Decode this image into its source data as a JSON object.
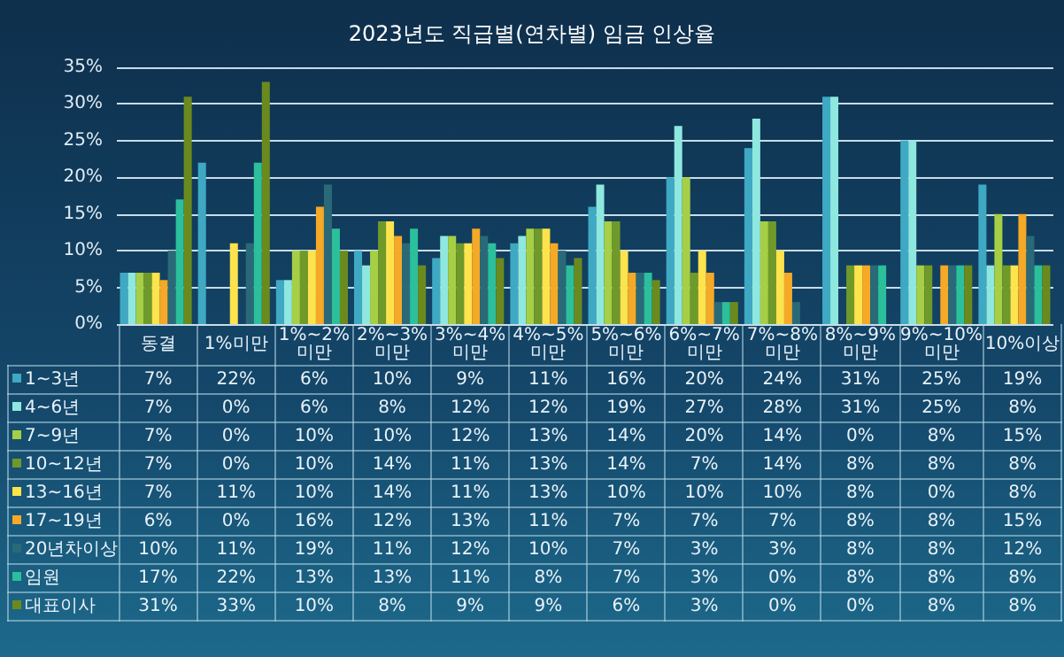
{
  "chart_data": {
    "type": "bar",
    "title": "2023년도 직급별(연차별) 임금 인상율",
    "categories": [
      "동결",
      "1%미만",
      "1%~2%\n미만",
      "2%~3%\n미만",
      "3%~4%\n미만",
      "4%~5%\n미만",
      "5%~6%\n미만",
      "6%~7%\n미만",
      "7%~8%\n미만",
      "8%~9%\n미만",
      "9%~10%\n미만",
      "10%이상"
    ],
    "ylim": [
      0,
      35
    ],
    "yticks": [
      {
        "value": 0,
        "label": "0%"
      },
      {
        "value": 5,
        "label": "5%"
      },
      {
        "value": 10,
        "label": "10%"
      },
      {
        "value": 15,
        "label": "15%"
      },
      {
        "value": 20,
        "label": "20%"
      },
      {
        "value": 25,
        "label": "25%"
      },
      {
        "value": 30,
        "label": "30%"
      },
      {
        "value": 35,
        "label": "35%"
      }
    ],
    "grid": "y",
    "legend": "bottom",
    "series": [
      {
        "name": "1~3년",
        "color": "#3fa9c4",
        "values": [
          7,
          22,
          6,
          10,
          9,
          11,
          16,
          20,
          24,
          31,
          25,
          19
        ],
        "value_labels": [
          "7%",
          "22%",
          "6%",
          "10%",
          "9%",
          "11%",
          "16%",
          "20%",
          "24%",
          "31%",
          "25%",
          "19%"
        ]
      },
      {
        "name": "4~6년",
        "color": "#8ee8e0",
        "values": [
          7,
          0,
          6,
          8,
          12,
          12,
          19,
          27,
          28,
          31,
          25,
          8
        ],
        "value_labels": [
          "7%",
          "0%",
          "6%",
          "8%",
          "12%",
          "12%",
          "19%",
          "27%",
          "28%",
          "31%",
          "25%",
          "8%"
        ]
      },
      {
        "name": "7~9년",
        "color": "#a6cf45",
        "values": [
          7,
          0,
          10,
          10,
          12,
          13,
          14,
          20,
          14,
          0,
          8,
          15
        ],
        "value_labels": [
          "7%",
          "0%",
          "10%",
          "10%",
          "12%",
          "13%",
          "14%",
          "20%",
          "14%",
          "0%",
          "8%",
          "15%"
        ]
      },
      {
        "name": "10~12년",
        "color": "#6f9a2a",
        "values": [
          7,
          0,
          10,
          14,
          11,
          13,
          14,
          7,
          14,
          8,
          8,
          8
        ],
        "value_labels": [
          "7%",
          "0%",
          "10%",
          "14%",
          "11%",
          "13%",
          "14%",
          "7%",
          "14%",
          "8%",
          "8%",
          "8%"
        ]
      },
      {
        "name": "13~16년",
        "color": "#fde34c",
        "values": [
          7,
          11,
          10,
          14,
          11,
          13,
          10,
          10,
          10,
          8,
          0,
          8
        ],
        "value_labels": [
          "7%",
          "11%",
          "10%",
          "14%",
          "11%",
          "13%",
          "10%",
          "10%",
          "10%",
          "8%",
          "0%",
          "8%"
        ]
      },
      {
        "name": "17~19년",
        "color": "#f5a927",
        "values": [
          6,
          0,
          16,
          12,
          13,
          11,
          7,
          7,
          7,
          8,
          8,
          15
        ],
        "value_labels": [
          "6%",
          "0%",
          "16%",
          "12%",
          "13%",
          "11%",
          "7%",
          "7%",
          "7%",
          "8%",
          "8%",
          "15%"
        ]
      },
      {
        "name": "20년차이상",
        "color": "#2a6a78",
        "values": [
          10,
          11,
          19,
          11,
          12,
          10,
          7,
          3,
          3,
          8,
          8,
          12
        ],
        "value_labels": [
          "10%",
          "11%",
          "19%",
          "11%",
          "12%",
          "10%",
          "7%",
          "3%",
          "3%",
          "8%",
          "8%",
          "12%"
        ]
      },
      {
        "name": "임원",
        "color": "#2cbf9c",
        "values": [
          17,
          22,
          13,
          13,
          11,
          8,
          7,
          3,
          0,
          8,
          8,
          8
        ],
        "value_labels": [
          "17%",
          "22%",
          "13%",
          "13%",
          "11%",
          "8%",
          "7%",
          "3%",
          "0%",
          "8%",
          "8%",
          "8%"
        ]
      },
      {
        "name": "대표이사",
        "color": "#6b8a1e",
        "values": [
          31,
          33,
          10,
          8,
          9,
          9,
          6,
          3,
          0,
          0,
          8,
          8
        ],
        "value_labels": [
          "31%",
          "33%",
          "10%",
          "8%",
          "9%",
          "9%",
          "6%",
          "3%",
          "0%",
          "0%",
          "8%",
          "8%"
        ]
      }
    ]
  }
}
